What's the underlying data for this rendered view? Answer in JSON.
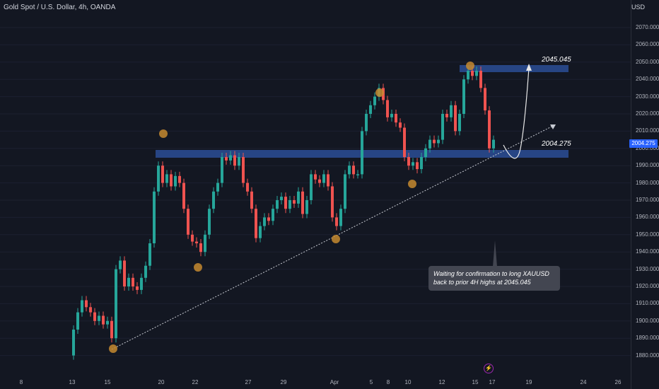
{
  "header": {
    "title": "Gold Spot / U.S. Dollar, 4h, OANDA",
    "currency": "USD"
  },
  "price_axis": {
    "ticks": [
      "2070.000",
      "2060.000",
      "2050.000",
      "2040.000",
      "2030.000",
      "2020.000",
      "2010.000",
      "2000.000",
      "1990.000",
      "1980.000",
      "1970.000",
      "1960.000",
      "1950.000",
      "1940.000",
      "1930.000",
      "1920.000",
      "1910.000",
      "1900.000",
      "1890.000",
      "1880.000"
    ],
    "current_price": "2004.275"
  },
  "time_axis": {
    "ticks": [
      "8",
      "13",
      "15",
      "20",
      "22",
      "27",
      "29",
      "Apr",
      "5",
      "8",
      "10",
      "12",
      "15",
      "17",
      "19",
      "24",
      "26"
    ]
  },
  "annotations": {
    "upper_level": "2045.045",
    "lower_level": "2004.275",
    "note_line1": "Waiting for confirmation to long XAUUSD",
    "note_line2": "back to prior 4H highs at 2045.045",
    "event_icon": "lightning-icon"
  },
  "colors": {
    "background": "#131722",
    "bull": "#26a69a",
    "bear": "#ef5350",
    "zone": "#2a4a8f",
    "marker": "#c68a2f",
    "label": "#2962ff"
  }
}
